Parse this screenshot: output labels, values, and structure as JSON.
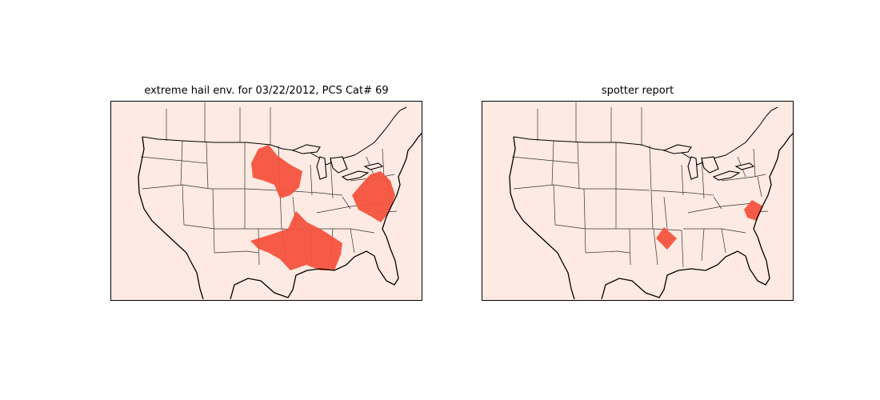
{
  "panels": [
    {
      "title": "extreme hail env. for 03/22/2012, PCS Cat# 69",
      "regions": [
        "upper-midwest",
        "mid-atlantic",
        "south-central"
      ]
    },
    {
      "title": "spotter report",
      "regions": [
        "louisiana-mississippi",
        "north-carolina-coast"
      ]
    }
  ],
  "colors": {
    "map_background": "#fdeae2",
    "highlight": "#f5533e",
    "border": "#000000"
  }
}
